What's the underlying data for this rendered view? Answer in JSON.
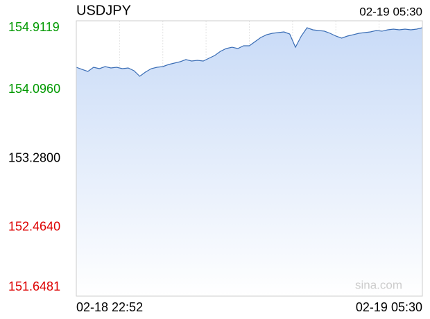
{
  "chart_data": {
    "type": "area",
    "title": "USDJPY",
    "time": "02-19 05:30",
    "watermark": "sina.com",
    "categories": [
      "02-18 22:52",
      null,
      null,
      null,
      null,
      null,
      null,
      null,
      null,
      null,
      null,
      null,
      null,
      null,
      null,
      null,
      null,
      null,
      null,
      null,
      null,
      null,
      null,
      null,
      null,
      null,
      null,
      null,
      null,
      null,
      null,
      null,
      null,
      null,
      null,
      null,
      null,
      null,
      null,
      null,
      null,
      null,
      null,
      null,
      null,
      null,
      null,
      null,
      null,
      null,
      null,
      null,
      null,
      null,
      null,
      null,
      null,
      null,
      null,
      null,
      "02-19 05:30"
    ],
    "values": [
      154.361,
      154.336,
      154.312,
      154.361,
      154.345,
      154.369,
      154.353,
      154.361,
      154.345,
      154.353,
      154.32,
      154.254,
      154.304,
      154.345,
      154.361,
      154.369,
      154.394,
      154.41,
      154.427,
      154.452,
      154.435,
      154.443,
      154.435,
      154.468,
      154.501,
      154.55,
      154.583,
      154.599,
      154.583,
      154.616,
      154.616,
      154.665,
      154.715,
      154.747,
      154.764,
      154.772,
      154.78,
      154.756,
      154.599,
      154.731,
      154.83,
      154.805,
      154.797,
      154.789,
      154.764,
      154.731,
      154.706,
      154.731,
      154.747,
      154.764,
      154.772,
      154.78,
      154.797,
      154.789,
      154.805,
      154.813,
      154.805,
      154.813,
      154.805,
      154.813,
      154.83
    ],
    "color": "#3a6db5",
    "fill_color": "#c9dbf7",
    "ylim": [
      151.6481,
      154.9119
    ],
    "yticks": [
      {
        "value": 154.9119,
        "label": "154.9119"
      },
      {
        "value": 154.096,
        "label": "154.0960"
      },
      {
        "value": 153.28,
        "label": "153.2800"
      },
      {
        "value": 152.464,
        "label": "152.4640"
      },
      {
        "value": 151.6481,
        "label": "151.6481"
      }
    ],
    "up_color": "#009900",
    "down_color": "#dd0000",
    "grid": true
  }
}
